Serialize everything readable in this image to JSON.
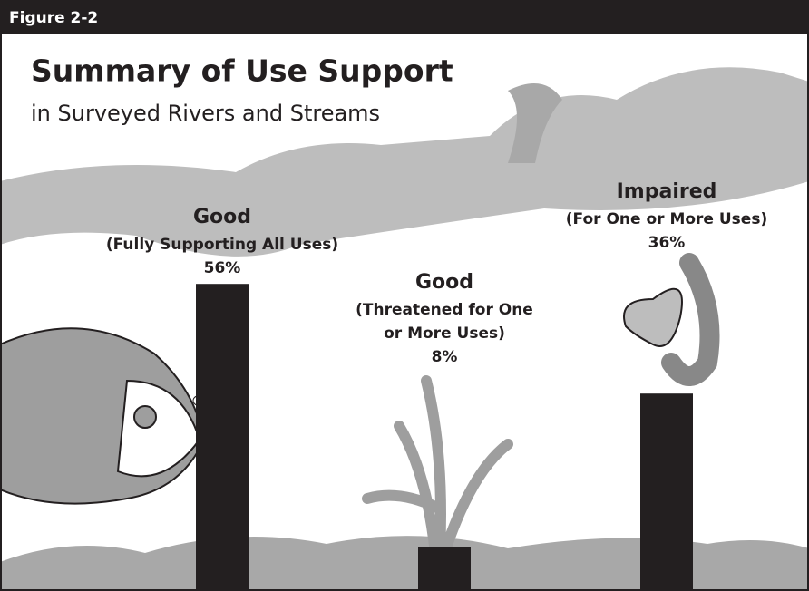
{
  "figure_label": "Figure 2-2",
  "chart_data": {
    "type": "bar",
    "title": "Summary of Use Support",
    "subtitle": "in Surveyed Rivers and Streams",
    "categories": [
      "Good",
      "Good",
      "Impaired"
    ],
    "descriptions": [
      [
        "(Fully Supporting All Uses)"
      ],
      [
        "(Threatened for One",
        "or More Uses)"
      ],
      [
        "(For One or More Uses)"
      ]
    ],
    "values": [
      56,
      8,
      36
    ],
    "value_labels": [
      "56%",
      "8%",
      "36%"
    ],
    "color": "#231f20"
  }
}
